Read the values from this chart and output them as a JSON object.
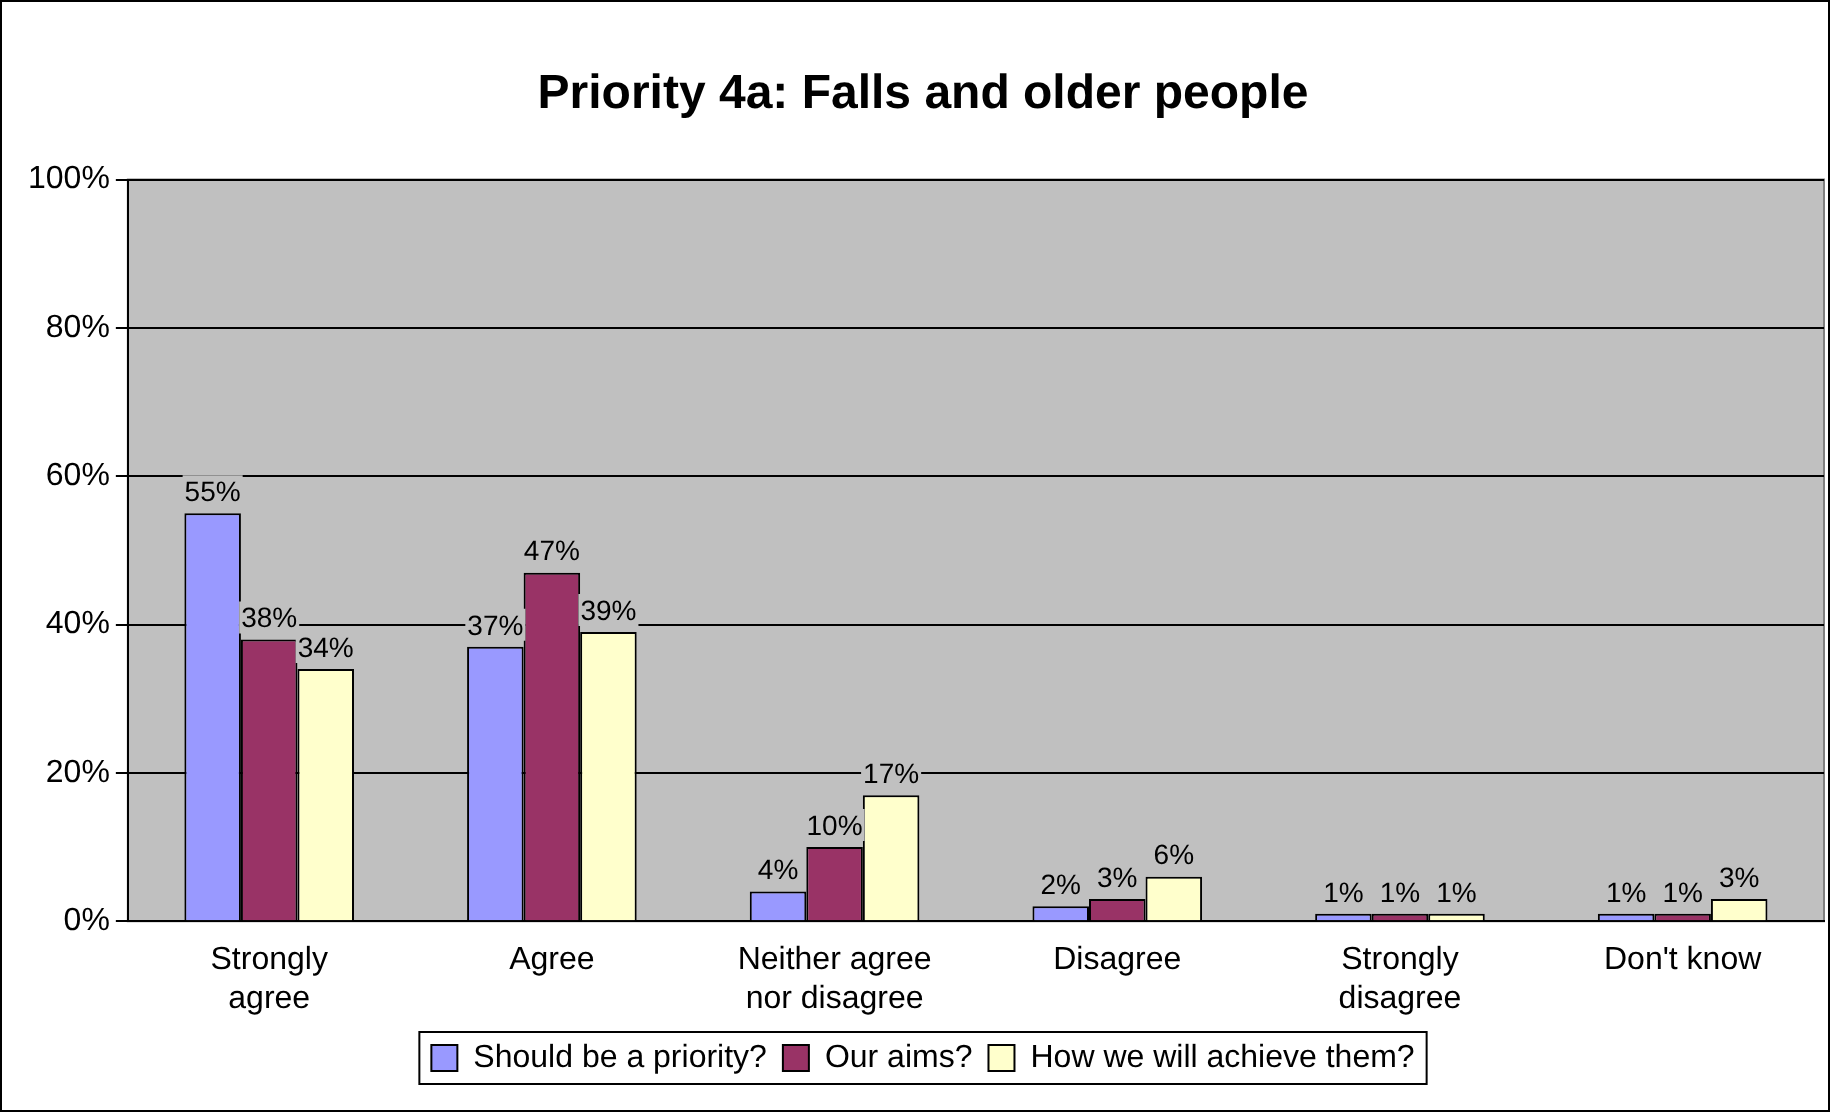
{
  "chart_data": {
    "type": "bar",
    "title": "Priority 4a: Falls and older people",
    "categories": [
      "Strongly agree",
      "Agree",
      "Neither agree nor disagree",
      "Disagree",
      "Strongly disagree",
      "Don't know"
    ],
    "series": [
      {
        "name": "Should be a priority?",
        "color": "#9999ff",
        "values": [
          55,
          37,
          4,
          2,
          1,
          1
        ],
        "value_labels": [
          "55%",
          "37%",
          "4%",
          "2%",
          "1%",
          "1%"
        ]
      },
      {
        "name": "Our aims?",
        "color": "#993366",
        "values": [
          38,
          47,
          10,
          3,
          1,
          1
        ],
        "value_labels": [
          "38%",
          "47%",
          "10%",
          "3%",
          "1%",
          "1%"
        ]
      },
      {
        "name": "How we will achieve them?",
        "color": "#ffffcc",
        "values": [
          34,
          39,
          17,
          6,
          1,
          3
        ],
        "value_labels": [
          "34%",
          "39%",
          "17%",
          "6%",
          "1%",
          "3%"
        ]
      }
    ],
    "ylim": [
      0,
      100
    ],
    "yticks": [
      {
        "value": 0,
        "label": "0%"
      },
      {
        "value": 20,
        "label": "20%"
      },
      {
        "value": 40,
        "label": "40%"
      },
      {
        "value": 60,
        "label": "60%"
      },
      {
        "value": 80,
        "label": "80%"
      },
      {
        "value": 100,
        "label": "100%"
      }
    ],
    "grid": "y",
    "legend": "bottom"
  }
}
